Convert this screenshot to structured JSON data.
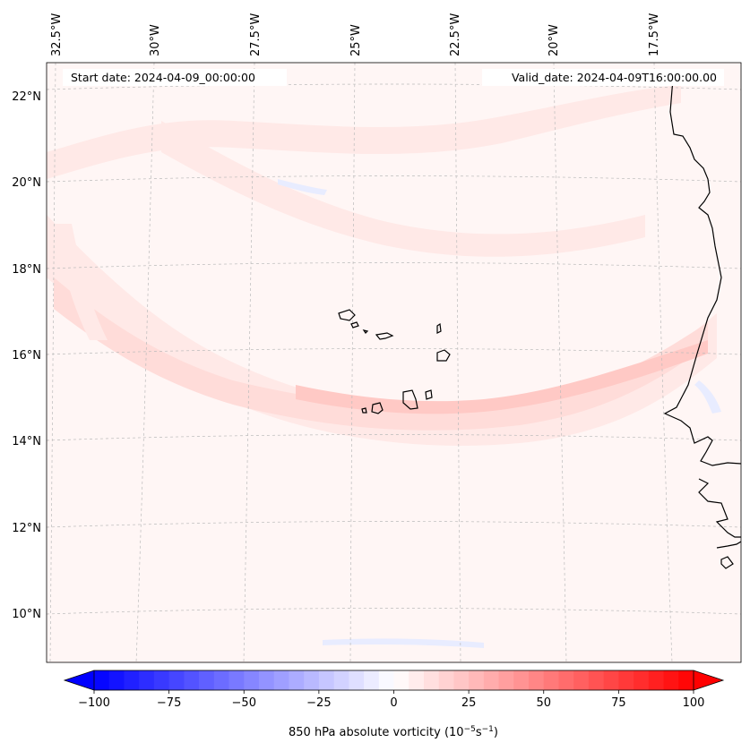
{
  "figure": {
    "start_date": "Start date: 2024-04-09_00:00:00",
    "valid_date": "Valid_date: 2024-04-09T16:00:00.00"
  },
  "map": {
    "lon_labels": [
      "32.5°W",
      "30°W",
      "27.5°W",
      "25°W",
      "22.5°W",
      "20°W",
      "17.5°W"
    ],
    "lat_labels": [
      "22°N",
      "20°N",
      "18°N",
      "16°N",
      "14°N",
      "12°N",
      "10°N"
    ],
    "field": "850 hPa absolute vorticity"
  },
  "colorbar": {
    "tick_labels": [
      "−100",
      "−75",
      "−50",
      "−25",
      "0",
      "25",
      "50",
      "75",
      "100"
    ],
    "tick_values": [
      -100,
      -75,
      -50,
      -25,
      0,
      25,
      50,
      75,
      100
    ],
    "vmin": -100,
    "vmax": 100,
    "levels": 40,
    "low_color": "#0000ff",
    "mid_color": "#ffffff",
    "high_color": "#ff0000",
    "label_main": "850 hPa absolute vorticity (10",
    "label_exp1": "−5",
    "label_mid": "s",
    "label_exp2": "−1",
    "label_end": ")"
  },
  "colors": {
    "ocean_base": "#fff6f5",
    "band_light": "#ffe9e7",
    "band_mid": "#ffdcd9",
    "band_strong": "#ffc9c5",
    "blue_patch": "#e8ecff",
    "coast": "#000000",
    "grid": "#bbbbbb"
  }
}
